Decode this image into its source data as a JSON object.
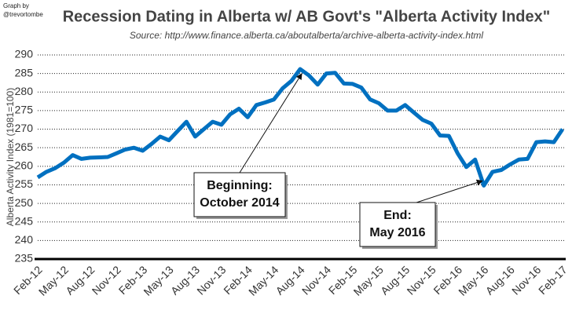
{
  "chart_data": {
    "type": "line",
    "title": "Recession Dating in Alberta w/ AB Govt's \"Alberta Activity Index\"",
    "subtitle": "Source:  http://www.finance.alberta.ca/aboutalberta/archive-alberta-activity-index.html",
    "credit": [
      "Graph by",
      "@trevortombe"
    ],
    "y_label": "Alberta Activity Index (1981=100)",
    "categories": [
      "Feb-12",
      null,
      null,
      "May-12",
      null,
      null,
      "Aug-12",
      null,
      null,
      "Nov-12",
      null,
      null,
      "Feb-13",
      null,
      null,
      "May-13",
      null,
      null,
      "Aug-13",
      null,
      null,
      "Nov-13",
      null,
      null,
      "Feb-14",
      null,
      null,
      "May-14",
      null,
      null,
      "Aug-14",
      null,
      null,
      "Nov-14",
      null,
      null,
      "Feb-15",
      null,
      null,
      "May-15",
      null,
      null,
      "Aug-15",
      null,
      null,
      "Nov-15",
      null,
      null,
      "Feb-16",
      null,
      null,
      "May-16",
      null,
      null,
      "Aug-16",
      null,
      null,
      "Nov-16",
      null,
      null,
      "Feb-17"
    ],
    "series": [
      {
        "name": "Alberta Activity Index",
        "color": "#0070c0",
        "values": [
          257,
          258.5,
          259.5,
          261,
          263,
          262,
          262.3,
          262.4,
          262.5,
          263.5,
          264.5,
          265,
          264.2,
          266,
          268,
          267,
          269.5,
          272,
          268,
          270,
          272,
          271.2,
          274,
          275.5,
          273.2,
          276.5,
          277.2,
          278,
          281,
          283,
          286.2,
          284.5,
          282,
          285,
          285.2,
          282.3,
          282.2,
          281.2,
          278,
          277,
          275,
          275,
          276.5,
          274.5,
          272.5,
          271.5,
          268.3,
          268.2,
          263.5,
          259.8,
          261.8,
          254.8,
          258.5,
          259,
          260.5,
          261.8,
          262,
          266.5,
          266.7,
          266.5,
          270
        ]
      }
    ],
    "ylim": [
      235,
      290
    ],
    "yticks": [
      235,
      240,
      245,
      250,
      255,
      260,
      265,
      270,
      275,
      280,
      285,
      290
    ],
    "grid": true,
    "annotations": [
      {
        "lines": [
          "Beginning:",
          "October 2014"
        ]
      },
      {
        "lines": [
          "End:",
          "May 2016"
        ]
      }
    ]
  }
}
